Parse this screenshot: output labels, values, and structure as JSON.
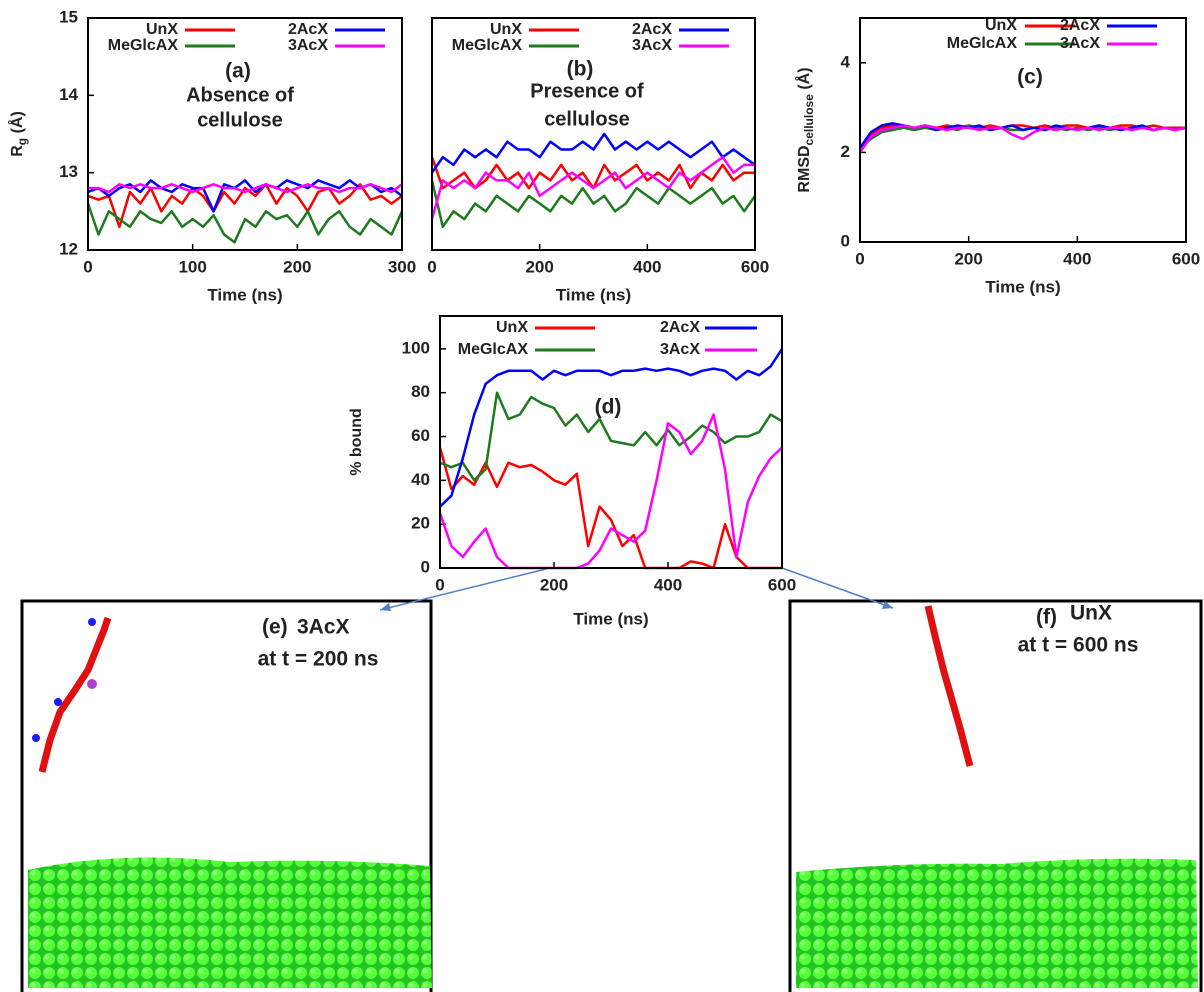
{
  "chart_data": [
    {
      "type": "line",
      "label": "(a)",
      "annotation": [
        "Absence of",
        "cellulose"
      ],
      "xlabel": "Time (ns)",
      "ylabel": [
        "R",
        "g",
        " (Å)"
      ],
      "x": [
        0,
        10,
        20,
        30,
        40,
        50,
        60,
        70,
        80,
        90,
        100,
        110,
        120,
        130,
        140,
        150,
        160,
        170,
        180,
        190,
        200,
        210,
        220,
        230,
        240,
        250,
        260,
        270,
        280,
        290,
        300
      ],
      "xlim": [
        0,
        300
      ],
      "xticks": [
        0,
        100,
        200,
        300
      ],
      "ylim": [
        12,
        15
      ],
      "yticks": [
        12,
        13,
        14,
        15
      ],
      "series": [
        {
          "name": "UnX",
          "color": "#ff0000",
          "values": [
            12.7,
            12.65,
            12.7,
            12.3,
            12.75,
            12.6,
            12.8,
            12.5,
            12.7,
            12.6,
            12.8,
            12.7,
            12.5,
            12.75,
            12.6,
            12.8,
            12.7,
            12.85,
            12.6,
            12.8,
            12.7,
            12.5,
            12.75,
            12.8,
            12.6,
            12.7,
            12.85,
            12.65,
            12.7,
            12.6,
            12.7
          ]
        },
        {
          "name": "MeGlcAX",
          "color": "#1e7a1e",
          "values": [
            12.6,
            12.2,
            12.5,
            12.4,
            12.3,
            12.5,
            12.4,
            12.35,
            12.5,
            12.3,
            12.4,
            12.3,
            12.45,
            12.2,
            12.1,
            12.4,
            12.3,
            12.5,
            12.4,
            12.45,
            12.3,
            12.5,
            12.2,
            12.4,
            12.5,
            12.3,
            12.2,
            12.4,
            12.3,
            12.2,
            12.5
          ]
        },
        {
          "name": "2AcX",
          "color": "#0000ff",
          "values": [
            12.75,
            12.8,
            12.7,
            12.8,
            12.85,
            12.75,
            12.9,
            12.8,
            12.75,
            12.85,
            12.8,
            12.8,
            12.5,
            12.85,
            12.8,
            12.9,
            12.75,
            12.85,
            12.8,
            12.9,
            12.85,
            12.8,
            12.9,
            12.85,
            12.8,
            12.9,
            12.8,
            12.85,
            12.75,
            12.8,
            12.7
          ]
        },
        {
          "name": "3AcX",
          "color": "#ff00ff",
          "values": [
            12.8,
            12.8,
            12.75,
            12.85,
            12.8,
            12.85,
            12.8,
            12.8,
            12.85,
            12.8,
            12.75,
            12.8,
            12.85,
            12.8,
            12.8,
            12.75,
            12.8,
            12.85,
            12.8,
            12.75,
            12.8,
            12.85,
            12.8,
            12.8,
            12.75,
            12.8,
            12.8,
            12.85,
            12.8,
            12.75,
            12.85
          ]
        }
      ]
    },
    {
      "type": "line",
      "label": "(b)",
      "annotation": [
        "Presence of",
        "cellulose"
      ],
      "xlabel": "Time (ns)",
      "x": [
        0,
        20,
        40,
        60,
        80,
        100,
        120,
        140,
        160,
        180,
        200,
        220,
        240,
        260,
        280,
        300,
        320,
        340,
        360,
        380,
        400,
        420,
        440,
        460,
        480,
        500,
        520,
        540,
        560,
        580,
        600
      ],
      "xlim": [
        0,
        600
      ],
      "xticks": [
        0,
        200,
        400,
        600
      ],
      "ylim": [
        12,
        15
      ],
      "series": [
        {
          "name": "UnX",
          "color": "#ff0000",
          "values": [
            13.2,
            12.8,
            12.9,
            13.0,
            12.8,
            12.9,
            13.1,
            12.9,
            13.0,
            12.8,
            13.0,
            12.9,
            13.1,
            12.9,
            13.0,
            12.8,
            13.1,
            12.9,
            13.0,
            13.1,
            12.9,
            13.0,
            12.9,
            13.1,
            12.8,
            13.0,
            12.9,
            13.1,
            12.9,
            13.0,
            13.0
          ]
        },
        {
          "name": "MeGlcAX",
          "color": "#1e7a1e",
          "values": [
            12.9,
            12.3,
            12.5,
            12.4,
            12.6,
            12.5,
            12.7,
            12.6,
            12.5,
            12.7,
            12.6,
            12.5,
            12.7,
            12.6,
            12.8,
            12.6,
            12.7,
            12.5,
            12.6,
            12.8,
            12.7,
            12.6,
            12.8,
            12.7,
            12.6,
            12.7,
            12.8,
            12.6,
            12.7,
            12.5,
            12.7
          ]
        },
        {
          "name": "2AcX",
          "color": "#0000ff",
          "values": [
            13.0,
            13.2,
            13.1,
            13.3,
            13.2,
            13.3,
            13.2,
            13.4,
            13.3,
            13.3,
            13.2,
            13.4,
            13.3,
            13.3,
            13.4,
            13.3,
            13.5,
            13.3,
            13.4,
            13.3,
            13.4,
            13.3,
            13.4,
            13.3,
            13.2,
            13.3,
            13.4,
            13.2,
            13.3,
            13.2,
            13.1
          ]
        },
        {
          "name": "3AcX",
          "color": "#ff00ff",
          "values": [
            12.4,
            12.9,
            12.8,
            12.9,
            12.8,
            13.0,
            12.9,
            12.9,
            12.8,
            13.0,
            12.7,
            12.8,
            12.9,
            13.0,
            12.9,
            12.8,
            12.9,
            13.0,
            12.8,
            12.9,
            13.0,
            12.9,
            12.8,
            13.0,
            12.9,
            13.0,
            13.1,
            13.2,
            13.0,
            13.1,
            13.1
          ]
        }
      ]
    },
    {
      "type": "line",
      "label": "(c)",
      "xlabel": "Time (ns)",
      "ylabel": [
        "RMSD",
        "cellulose",
        " (Å)"
      ],
      "x": [
        0,
        20,
        40,
        60,
        80,
        100,
        120,
        140,
        160,
        180,
        200,
        220,
        240,
        260,
        280,
        300,
        320,
        340,
        360,
        380,
        400,
        420,
        440,
        460,
        480,
        500,
        520,
        540,
        560,
        580,
        600
      ],
      "xlim": [
        0,
        600
      ],
      "xticks": [
        0,
        200,
        400,
        600
      ],
      "ylim": [
        0,
        5
      ],
      "yticks": [
        0,
        2,
        4
      ],
      "series": [
        {
          "name": "UnX",
          "color": "#ff0000",
          "values": [
            2.0,
            2.4,
            2.55,
            2.6,
            2.6,
            2.55,
            2.6,
            2.55,
            2.6,
            2.55,
            2.6,
            2.55,
            2.6,
            2.55,
            2.6,
            2.6,
            2.55,
            2.6,
            2.55,
            2.6,
            2.6,
            2.55,
            2.6,
            2.55,
            2.6,
            2.6,
            2.55,
            2.6,
            2.55,
            2.55,
            2.55
          ]
        },
        {
          "name": "MeGlcAX",
          "color": "#1e7a1e",
          "values": [
            2.1,
            2.3,
            2.45,
            2.5,
            2.55,
            2.5,
            2.55,
            2.5,
            2.55,
            2.5,
            2.6,
            2.55,
            2.5,
            2.55,
            2.5,
            2.5,
            2.55,
            2.5,
            2.55,
            2.5,
            2.55,
            2.5,
            2.55,
            2.5,
            2.55,
            2.5,
            2.55,
            2.5,
            2.55,
            2.5,
            2.55
          ]
        },
        {
          "name": "2AcX",
          "color": "#0000ff",
          "values": [
            2.1,
            2.45,
            2.6,
            2.65,
            2.6,
            2.55,
            2.6,
            2.5,
            2.55,
            2.6,
            2.55,
            2.6,
            2.5,
            2.55,
            2.6,
            2.5,
            2.55,
            2.5,
            2.6,
            2.55,
            2.5,
            2.55,
            2.6,
            2.55,
            2.5,
            2.55,
            2.6,
            2.5,
            2.55,
            2.5,
            2.55
          ]
        },
        {
          "name": "3AcX",
          "color": "#ff00ff",
          "values": [
            2.0,
            2.35,
            2.5,
            2.55,
            2.6,
            2.55,
            2.6,
            2.55,
            2.5,
            2.55,
            2.55,
            2.5,
            2.55,
            2.55,
            2.4,
            2.3,
            2.45,
            2.55,
            2.5,
            2.55,
            2.5,
            2.55,
            2.5,
            2.55,
            2.55,
            2.5,
            2.55,
            2.5,
            2.55,
            2.5,
            2.55
          ]
        }
      ]
    },
    {
      "type": "line",
      "label": "(d)",
      "xlabel": "Time (ns)",
      "ylabel": [
        "% bound"
      ],
      "x": [
        0,
        20,
        40,
        60,
        80,
        100,
        120,
        140,
        160,
        180,
        200,
        220,
        240,
        260,
        280,
        300,
        320,
        340,
        360,
        380,
        400,
        420,
        440,
        460,
        480,
        500,
        520,
        540,
        560,
        580,
        600
      ],
      "xlim": [
        0,
        600
      ],
      "xticks": [
        0,
        200,
        400,
        600
      ],
      "ylim": [
        0,
        115
      ],
      "yticks": [
        0,
        20,
        40,
        60,
        80,
        100
      ],
      "series": [
        {
          "name": "UnX",
          "color": "#ff0000",
          "values": [
            55,
            36,
            42,
            38,
            48,
            37,
            48,
            46,
            47,
            44,
            40,
            38,
            43,
            10,
            28,
            22,
            10,
            15,
            0,
            0,
            0,
            0,
            3,
            2,
            0,
            20,
            5,
            0,
            0,
            0,
            0
          ]
        },
        {
          "name": "MeGlcAX",
          "color": "#1e7a1e",
          "values": [
            48,
            46,
            48,
            40,
            45,
            80,
            68,
            70,
            78,
            75,
            73,
            65,
            70,
            62,
            68,
            58,
            57,
            56,
            62,
            56,
            63,
            56,
            60,
            65,
            62,
            57,
            60,
            60,
            62,
            70,
            67
          ]
        },
        {
          "name": "2AcX",
          "color": "#0000ff",
          "values": [
            28,
            33,
            50,
            70,
            84,
            88,
            90,
            90,
            90,
            86,
            90,
            88,
            90,
            90,
            90,
            88,
            90,
            90,
            91,
            90,
            91,
            90,
            88,
            90,
            91,
            90,
            86,
            90,
            88,
            92,
            100
          ]
        },
        {
          "name": "3AcX",
          "color": "#ff00ff",
          "values": [
            25,
            10,
            5,
            12,
            18,
            5,
            0,
            0,
            0,
            0,
            0,
            0,
            0,
            2,
            8,
            18,
            15,
            12,
            17,
            40,
            66,
            62,
            52,
            58,
            70,
            45,
            5,
            30,
            42,
            50,
            55
          ]
        }
      ]
    }
  ],
  "panels": [
    {
      "label": "(e)",
      "title": "3AcX",
      "subtitle": "at t = 200 ns"
    },
    {
      "label": "(f)",
      "title": "UnX",
      "subtitle": "at t = 600 ns"
    }
  ]
}
